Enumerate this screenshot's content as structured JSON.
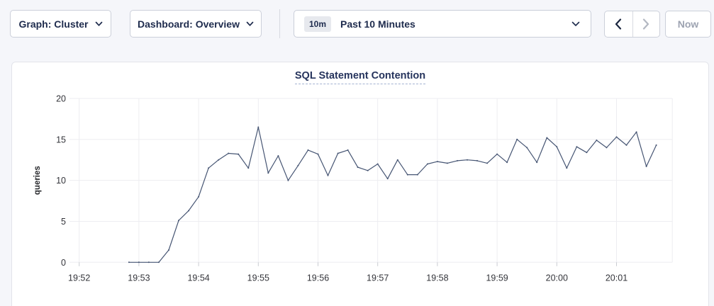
{
  "toolbar": {
    "graph_dropdown": {
      "label": "Graph: Cluster"
    },
    "dashboard_dropdown": {
      "label": "Dashboard: Overview"
    },
    "time_selector": {
      "badge": "10m",
      "label": "Past 10 Minutes"
    },
    "now_button": {
      "label": "Now"
    }
  },
  "icons": {
    "graph_dropdown_icon": "chevron-down",
    "dashboard_dropdown_icon": "chevron-down",
    "time_selector_icon": "chevron-down",
    "time_prev_icon": "chevron-left",
    "time_next_icon": "chevron-right"
  },
  "colors": {
    "page_background": "#f5f6fa",
    "card_background": "#ffffff",
    "accent_navy": "#1e2b4d",
    "series_line": "#465573",
    "gridline": "#ededf1",
    "disabled_text": "#9da3b1"
  },
  "chart_data": {
    "type": "line",
    "title": "SQL Statement Contention",
    "xlabel": "",
    "ylabel": "queries",
    "ylim": [
      0,
      20
    ],
    "yticks": [
      0,
      5,
      10,
      15,
      20
    ],
    "xticks": [
      "19:52",
      "19:53",
      "19:54",
      "19:55",
      "19:56",
      "19:57",
      "19:58",
      "19:59",
      "20:00",
      "20:01"
    ],
    "grid": true,
    "legend_position": "none",
    "series": [
      {
        "name": "SQL Statement Contention",
        "color": "#465573",
        "start_time": "19:52:50",
        "interval_seconds": 10,
        "values": [
          0,
          0,
          0,
          0,
          1.5,
          5.1,
          6.3,
          8,
          11.5,
          12.5,
          13.3,
          13.2,
          11.5,
          16.5,
          10.9,
          13,
          10,
          11.8,
          13.7,
          13.2,
          10.6,
          13.3,
          13.7,
          11.6,
          11.2,
          12,
          10.2,
          12.5,
          10.7,
          10.7,
          12,
          12.3,
          12.1,
          12.4,
          12.5,
          12.4,
          12.1,
          13.2,
          12.2,
          15,
          14,
          12.2,
          15.2,
          14.1,
          11.5,
          14.1,
          13.4,
          14.9,
          14,
          15.3,
          14.3,
          15.9,
          11.7,
          14.3
        ]
      }
    ]
  }
}
